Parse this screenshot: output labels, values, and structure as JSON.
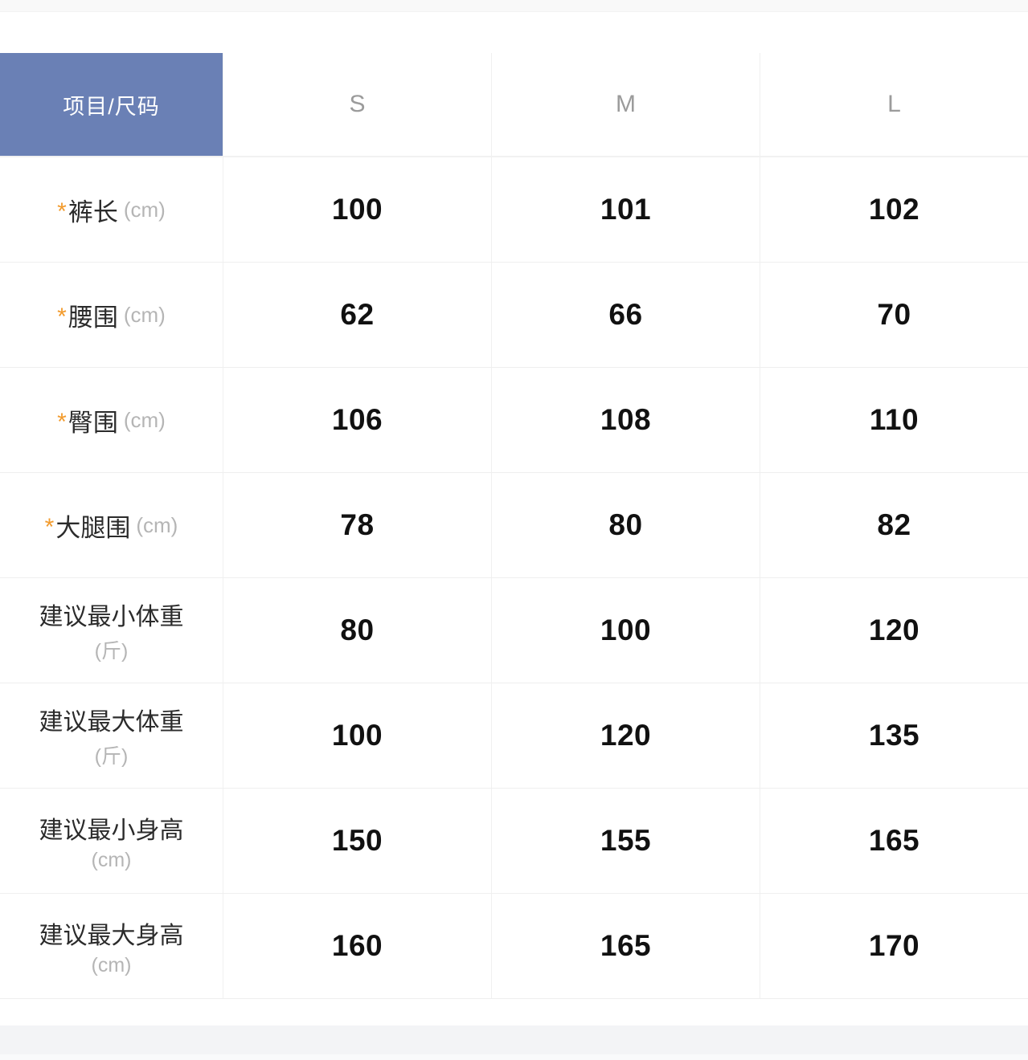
{
  "table": {
    "corner_header": "项目/尺码",
    "size_columns": [
      "S",
      "M",
      "L"
    ],
    "rows": [
      {
        "required": true,
        "two_line": false,
        "label": "裤长",
        "unit": "(cm)",
        "values": [
          "100",
          "101",
          "102"
        ]
      },
      {
        "required": true,
        "two_line": false,
        "label": "腰围",
        "unit": "(cm)",
        "values": [
          "62",
          "66",
          "70"
        ]
      },
      {
        "required": true,
        "two_line": false,
        "label": "臀围",
        "unit": "(cm)",
        "values": [
          "106",
          "108",
          "110"
        ]
      },
      {
        "required": true,
        "two_line": false,
        "label": "大腿围",
        "unit": "(cm)",
        "values": [
          "78",
          "80",
          "82"
        ]
      },
      {
        "required": false,
        "two_line": true,
        "label": "建议最小体重",
        "unit": "(斤)",
        "values": [
          "80",
          "100",
          "120"
        ]
      },
      {
        "required": false,
        "two_line": true,
        "label": "建议最大体重",
        "unit": "(斤)",
        "values": [
          "100",
          "120",
          "135"
        ]
      },
      {
        "required": false,
        "two_line": true,
        "label": "建议最小身高",
        "unit": "(cm)",
        "values": [
          "150",
          "155",
          "165"
        ]
      },
      {
        "required": false,
        "two_line": true,
        "label": "建议最大身高",
        "unit": "(cm)",
        "values": [
          "160",
          "165",
          "170"
        ]
      }
    ],
    "required_marker": "*",
    "colors": {
      "header_blue": "#6a80b5",
      "asterisk_orange": "#f29b2d",
      "size_header_gray": "#9b9b9b",
      "unit_gray": "#b5b5b5",
      "value_black": "#111111"
    }
  }
}
